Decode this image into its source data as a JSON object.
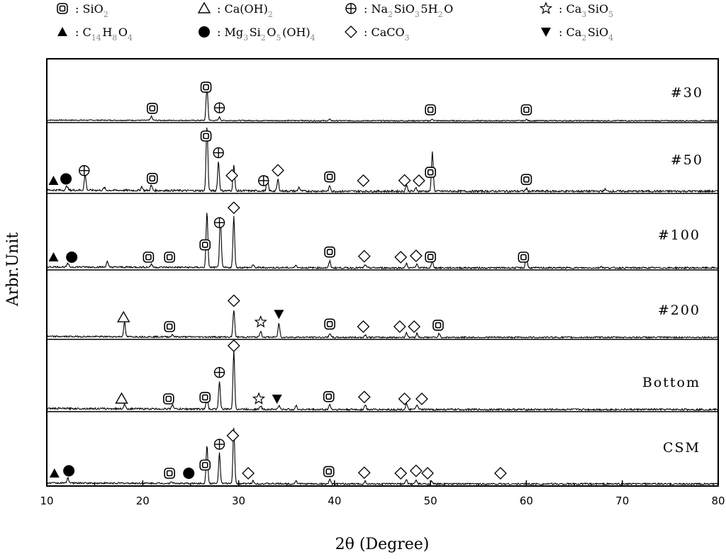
{
  "legend": [
    {
      "symbol": "sio2",
      "glyph": "◎",
      "label": "SiO",
      "sub": "2"
    },
    {
      "symbol": "triangle-open",
      "glyph": "△",
      "label": "Ca(OH)",
      "sub": "2"
    },
    {
      "symbol": "circle-plus",
      "glyph": "⊕",
      "label": "Na",
      "sub": "2",
      "label2": "SiO",
      "sub2": "3",
      "label3": "5H",
      "sub3": "2",
      "label4": "O"
    },
    {
      "symbol": "star-open",
      "glyph": "☆",
      "label": "Ca",
      "sub": "3",
      "label2": "SiO",
      "sub2": "5"
    },
    {
      "symbol": "triangle-filled",
      "glyph": "▲",
      "label": "C",
      "sub": "14",
      "label2": "H",
      "sub2": "8",
      "label3": "O",
      "sub3": "4"
    },
    {
      "symbol": "circle-filled",
      "glyph": "●",
      "label": "Mg",
      "sub": "3",
      "label2": "Si",
      "sub2": "2",
      "label3": "O",
      "sub3": "5",
      "label4": "(OH)",
      "sub4": "4"
    },
    {
      "symbol": "diamond-open",
      "glyph": "◇",
      "label": "CaCO",
      "sub": "3"
    },
    {
      "symbol": "triangle-down-filled",
      "glyph": "▼",
      "label": "Ca",
      "sub": "2",
      "label2": "SiO",
      "sub2": "4"
    }
  ],
  "legend_separator": ":",
  "chart_data": {
    "type": "line",
    "xlabel": "2θ (Degree)",
    "ylabel": "Arbr.Unit",
    "xlim": [
      10,
      80
    ],
    "xticks": [
      10,
      20,
      30,
      40,
      50,
      60,
      70,
      80
    ],
    "grid": false,
    "series": [
      {
        "name": "#30",
        "peaks": [
          {
            "x": 20.9,
            "h": 0.12
          },
          {
            "x": 26.7,
            "h": 1.0
          },
          {
            "x": 28.0,
            "h": 0.1
          },
          {
            "x": 36.5,
            "h": 0.02
          },
          {
            "x": 39.5,
            "h": 0.04
          },
          {
            "x": 50.2,
            "h": 0.05
          },
          {
            "x": 60.0,
            "h": 0.04
          }
        ],
        "markers": [
          {
            "x": 21.0,
            "m": "sio2"
          },
          {
            "x": 26.6,
            "m": "sio2"
          },
          {
            "x": 28.0,
            "m": "circle-plus"
          },
          {
            "x": 50.0,
            "m": "sio2"
          },
          {
            "x": 60.0,
            "m": "sio2"
          }
        ]
      },
      {
        "name": "#50",
        "peaks": [
          {
            "x": 12.1,
            "h": 0.07
          },
          {
            "x": 14.0,
            "h": 0.25
          },
          {
            "x": 16.0,
            "h": 0.04
          },
          {
            "x": 19.9,
            "h": 0.06
          },
          {
            "x": 20.9,
            "h": 0.08
          },
          {
            "x": 26.7,
            "h": 1.0
          },
          {
            "x": 27.9,
            "h": 0.45
          },
          {
            "x": 29.5,
            "h": 0.4
          },
          {
            "x": 33.0,
            "h": 0.22
          },
          {
            "x": 34.1,
            "h": 0.18
          },
          {
            "x": 36.3,
            "h": 0.06
          },
          {
            "x": 39.5,
            "h": 0.08
          },
          {
            "x": 47.5,
            "h": 0.1
          },
          {
            "x": 48.5,
            "h": 0.05
          },
          {
            "x": 50.2,
            "h": 0.6
          },
          {
            "x": 60.0,
            "h": 0.04
          },
          {
            "x": 68.2,
            "h": 0.03
          }
        ],
        "markers": [
          {
            "x": 10.7,
            "m": "triangle-filled"
          },
          {
            "x": 12.0,
            "m": "circle-filled"
          },
          {
            "x": 13.9,
            "m": "circle-plus"
          },
          {
            "x": 21.0,
            "m": "sio2"
          },
          {
            "x": 26.6,
            "m": "sio2"
          },
          {
            "x": 27.9,
            "m": "circle-plus"
          },
          {
            "x": 29.3,
            "m": "diamond-open"
          },
          {
            "x": 32.6,
            "m": "circle-plus"
          },
          {
            "x": 34.1,
            "m": "diamond-open"
          },
          {
            "x": 39.5,
            "m": "sio2"
          },
          {
            "x": 43.0,
            "m": "diamond-open"
          },
          {
            "x": 47.3,
            "m": "diamond-open"
          },
          {
            "x": 48.8,
            "m": "diamond-open"
          },
          {
            "x": 50.0,
            "m": "sio2"
          },
          {
            "x": 60.0,
            "m": "sio2"
          }
        ]
      },
      {
        "name": "#100",
        "peaks": [
          {
            "x": 12.2,
            "h": 0.06
          },
          {
            "x": 16.3,
            "h": 0.1
          },
          {
            "x": 20.9,
            "h": 0.06
          },
          {
            "x": 26.7,
            "h": 1.0
          },
          {
            "x": 28.1,
            "h": 0.92
          },
          {
            "x": 29.5,
            "h": 0.92
          },
          {
            "x": 31.5,
            "h": 0.05
          },
          {
            "x": 36.0,
            "h": 0.05
          },
          {
            "x": 39.5,
            "h": 0.12
          },
          {
            "x": 43.2,
            "h": 0.06
          },
          {
            "x": 47.5,
            "h": 0.08
          },
          {
            "x": 48.6,
            "h": 0.07
          },
          {
            "x": 50.2,
            "h": 0.12
          },
          {
            "x": 60.0,
            "h": 0.22
          },
          {
            "x": 67.8,
            "h": 0.03
          }
        ],
        "markers": [
          {
            "x": 10.7,
            "m": "triangle-filled"
          },
          {
            "x": 12.6,
            "m": "circle-filled"
          },
          {
            "x": 20.6,
            "m": "sio2"
          },
          {
            "x": 22.8,
            "m": "sio2"
          },
          {
            "x": 26.5,
            "m": "sio2"
          },
          {
            "x": 28.0,
            "m": "circle-plus"
          },
          {
            "x": 29.5,
            "m": "diamond-open"
          },
          {
            "x": 39.5,
            "m": "sio2"
          },
          {
            "x": 43.1,
            "m": "diamond-open"
          },
          {
            "x": 46.9,
            "m": "diamond-open"
          },
          {
            "x": 48.5,
            "m": "diamond-open"
          },
          {
            "x": 50.0,
            "m": "sio2"
          },
          {
            "x": 59.7,
            "m": "sio2"
          }
        ]
      },
      {
        "name": "#200",
        "peaks": [
          {
            "x": 18.1,
            "h": 0.3
          },
          {
            "x": 23.1,
            "h": 0.05
          },
          {
            "x": 29.5,
            "h": 0.55
          },
          {
            "x": 32.3,
            "h": 0.12
          },
          {
            "x": 34.2,
            "h": 0.28
          },
          {
            "x": 39.5,
            "h": 0.08
          },
          {
            "x": 43.2,
            "h": 0.05
          },
          {
            "x": 47.5,
            "h": 0.1
          },
          {
            "x": 48.6,
            "h": 0.08
          },
          {
            "x": 50.9,
            "h": 0.08
          }
        ],
        "markers": [
          {
            "x": 18.0,
            "m": "triangle-open"
          },
          {
            "x": 22.8,
            "m": "sio2"
          },
          {
            "x": 29.5,
            "m": "diamond-open"
          },
          {
            "x": 32.3,
            "m": "star-open"
          },
          {
            "x": 34.2,
            "m": "triangle-down-filled"
          },
          {
            "x": 39.5,
            "m": "sio2"
          },
          {
            "x": 43.0,
            "m": "diamond-open"
          },
          {
            "x": 46.8,
            "m": "diamond-open"
          },
          {
            "x": 48.3,
            "m": "diamond-open"
          },
          {
            "x": 50.8,
            "m": "sio2"
          }
        ]
      },
      {
        "name": "Bottom",
        "peaks": [
          {
            "x": 18.1,
            "h": 0.08
          },
          {
            "x": 23.1,
            "h": 0.08
          },
          {
            "x": 26.7,
            "h": 0.2
          },
          {
            "x": 28.0,
            "h": 0.48
          },
          {
            "x": 29.5,
            "h": 1.0
          },
          {
            "x": 32.3,
            "h": 0.06
          },
          {
            "x": 34.2,
            "h": 0.06
          },
          {
            "x": 36.0,
            "h": 0.06
          },
          {
            "x": 39.5,
            "h": 0.09
          },
          {
            "x": 43.2,
            "h": 0.08
          },
          {
            "x": 47.5,
            "h": 0.1
          },
          {
            "x": 48.6,
            "h": 0.09
          }
        ],
        "markers": [
          {
            "x": 17.8,
            "m": "triangle-open"
          },
          {
            "x": 22.7,
            "m": "sio2"
          },
          {
            "x": 26.5,
            "m": "sio2"
          },
          {
            "x": 28.0,
            "m": "circle-plus"
          },
          {
            "x": 29.5,
            "m": "diamond-open"
          },
          {
            "x": 32.1,
            "m": "star-open"
          },
          {
            "x": 34.0,
            "m": "triangle-down-filled"
          },
          {
            "x": 39.4,
            "m": "sio2"
          },
          {
            "x": 43.1,
            "m": "diamond-open"
          },
          {
            "x": 47.3,
            "m": "diamond-open"
          },
          {
            "x": 49.1,
            "m": "diamond-open"
          }
        ]
      },
      {
        "name": "CSM",
        "peaks": [
          {
            "x": 12.2,
            "h": 0.1
          },
          {
            "x": 23.0,
            "h": 0.04
          },
          {
            "x": 26.7,
            "h": 0.7
          },
          {
            "x": 28.0,
            "h": 0.55
          },
          {
            "x": 29.5,
            "h": 1.0
          },
          {
            "x": 31.5,
            "h": 0.05
          },
          {
            "x": 36.0,
            "h": 0.06
          },
          {
            "x": 39.5,
            "h": 0.08
          },
          {
            "x": 43.2,
            "h": 0.05
          },
          {
            "x": 47.5,
            "h": 0.08
          },
          {
            "x": 48.5,
            "h": 0.07
          },
          {
            "x": 50.1,
            "h": 0.05
          }
        ],
        "markers": [
          {
            "x": 10.8,
            "m": "triangle-filled"
          },
          {
            "x": 12.3,
            "m": "circle-filled"
          },
          {
            "x": 22.8,
            "m": "sio2"
          },
          {
            "x": 24.8,
            "m": "circle-filled"
          },
          {
            "x": 26.5,
            "m": "sio2"
          },
          {
            "x": 28.0,
            "m": "circle-plus"
          },
          {
            "x": 29.4,
            "m": "diamond-open"
          },
          {
            "x": 31.0,
            "m": "diamond-open"
          },
          {
            "x": 39.4,
            "m": "sio2"
          },
          {
            "x": 43.1,
            "m": "diamond-open"
          },
          {
            "x": 46.9,
            "m": "diamond-open"
          },
          {
            "x": 48.5,
            "m": "diamond-open"
          },
          {
            "x": 49.7,
            "m": "diamond-open"
          },
          {
            "x": 57.3,
            "m": "diamond-open"
          }
        ]
      }
    ]
  }
}
